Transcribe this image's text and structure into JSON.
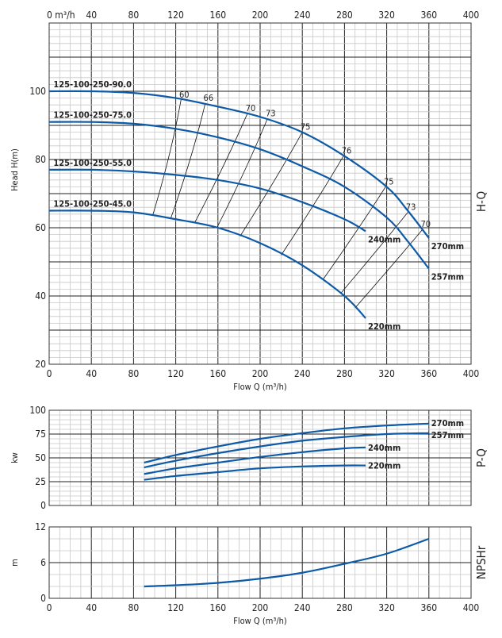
{
  "chart_data": [
    {
      "type": "line",
      "panel_label": "H-Q",
      "xlabel": "Flow Q (m³/h)",
      "top_axis_unit": "m³/h",
      "ylabel": "Head H(m)",
      "xlim": [
        0,
        400
      ],
      "ylim": [
        20,
        120
      ],
      "x_ticks": [
        0,
        40,
        80,
        120,
        160,
        200,
        240,
        280,
        320,
        360,
        400
      ],
      "y_ticks": [
        20,
        40,
        60,
        80,
        100
      ],
      "grid": true,
      "series": [
        {
          "name": "270mm",
          "model": "125-100-250-90.0",
          "x": [
            0,
            40,
            80,
            120,
            160,
            200,
            240,
            280,
            320,
            340,
            360
          ],
          "y": [
            100,
            100,
            99.5,
            98,
            95.5,
            92.5,
            88,
            81,
            72,
            65,
            57
          ]
        },
        {
          "name": "257mm",
          "model": "125-100-250-75.0",
          "x": [
            0,
            40,
            80,
            120,
            160,
            200,
            240,
            280,
            320,
            340,
            360
          ],
          "y": [
            91,
            91,
            90.5,
            89,
            86.5,
            83,
            78,
            72,
            63,
            56,
            48
          ]
        },
        {
          "name": "240mm",
          "model": "125-100-250-55.0",
          "x": [
            0,
            40,
            80,
            120,
            160,
            200,
            240,
            280,
            300
          ],
          "y": [
            77,
            77,
            76.5,
            75.5,
            74,
            71.5,
            67.5,
            62.5,
            59
          ]
        },
        {
          "name": "220mm",
          "model": "125-100-250-45.0",
          "x": [
            0,
            40,
            80,
            120,
            160,
            200,
            240,
            280,
            300
          ],
          "y": [
            65,
            65,
            64.5,
            62.5,
            60,
            55.5,
            49,
            40,
            33.5
          ]
        }
      ],
      "efficiency_lines": [
        {
          "label": "60",
          "from": [
            125,
            97.5
          ],
          "to": [
            98,
            63.5
          ]
        },
        {
          "label": "66",
          "from": [
            148,
            96.5
          ],
          "to": [
            115,
            62.5
          ]
        },
        {
          "label": "70",
          "from": [
            188,
            93.5
          ],
          "to": [
            138,
            61.5
          ]
        },
        {
          "label": "73",
          "from": [
            207,
            92
          ],
          "to": [
            159,
            60
          ]
        },
        {
          "label": "75",
          "from": [
            240,
            88
          ],
          "to": [
            181,
            57.5
          ]
        },
        {
          "label": "76",
          "from": [
            279,
            81
          ],
          "to": [
            220,
            52
          ]
        },
        {
          "label": "75",
          "from": [
            319,
            72
          ],
          "to": [
            260,
            45
          ]
        },
        {
          "label": "73",
          "from": [
            340,
            64.5
          ],
          "to": [
            277,
            41
          ]
        },
        {
          "label": "70",
          "from": [
            354,
            59.5
          ],
          "to": [
            290,
            36.5
          ]
        }
      ]
    },
    {
      "type": "line",
      "panel_label": "P-Q",
      "ylabel": "kw",
      "xlim": [
        0,
        400
      ],
      "ylim": [
        0,
        100
      ],
      "y_ticks": [
        0,
        25,
        50,
        75,
        100
      ],
      "grid": true,
      "series": [
        {
          "name": "270mm",
          "x": [
            90,
            120,
            160,
            200,
            240,
            280,
            320,
            360
          ],
          "y": [
            45,
            53,
            62,
            70,
            76,
            81,
            84,
            86
          ]
        },
        {
          "name": "257mm",
          "x": [
            90,
            120,
            160,
            200,
            240,
            280,
            320,
            360
          ],
          "y": [
            40,
            47,
            55,
            62,
            68,
            72,
            75,
            76
          ]
        },
        {
          "name": "240mm",
          "x": [
            90,
            120,
            160,
            200,
            240,
            280,
            300
          ],
          "y": [
            33,
            39,
            45,
            51,
            56,
            60,
            61
          ]
        },
        {
          "name": "220mm",
          "x": [
            90,
            120,
            160,
            200,
            240,
            280,
            300
          ],
          "y": [
            27,
            31,
            35,
            39,
            41,
            42,
            42
          ]
        }
      ]
    },
    {
      "type": "line",
      "panel_label": "NPSHr",
      "ylabel": "m",
      "xlabel": "Flow Q (m³/h)",
      "xlim": [
        0,
        400
      ],
      "ylim": [
        0,
        12
      ],
      "y_ticks": [
        0,
        6,
        12
      ],
      "x_ticks": [
        0,
        40,
        80,
        120,
        160,
        200,
        240,
        280,
        320,
        360,
        400
      ],
      "grid": true,
      "series": [
        {
          "x": [
            90,
            120,
            160,
            200,
            240,
            280,
            320,
            360
          ],
          "y": [
            2,
            2.2,
            2.6,
            3.3,
            4.3,
            5.8,
            7.5,
            10
          ]
        }
      ]
    }
  ],
  "colors": {
    "curve": "#0d5aa7",
    "grid_major": "#222222",
    "grid_minor": "#c8c8c8",
    "efficiency": "#111111"
  }
}
